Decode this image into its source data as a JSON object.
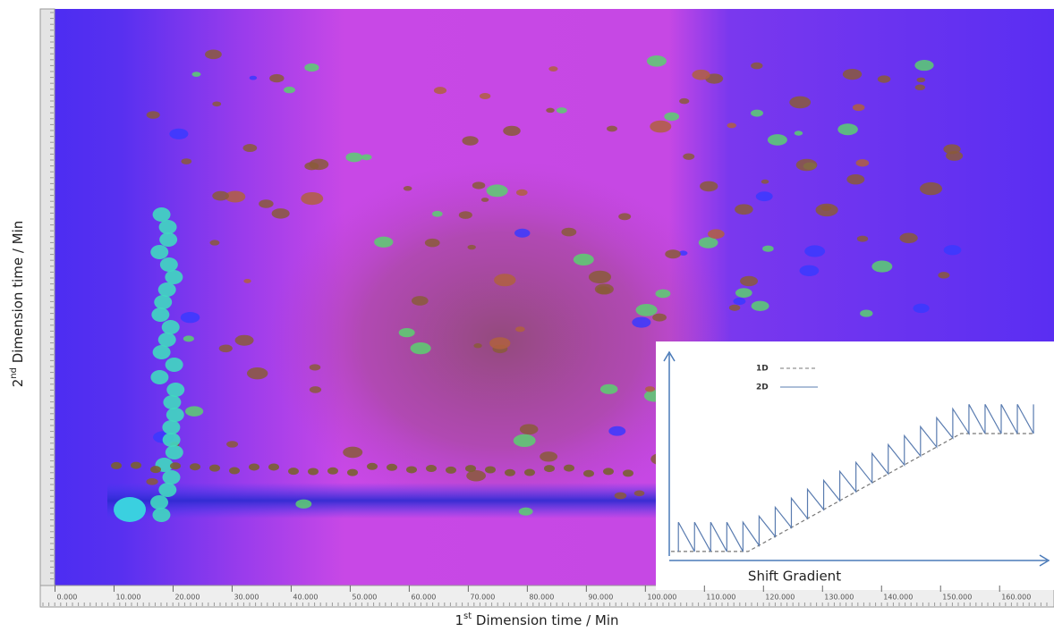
{
  "chart_data": [
    {
      "type": "heatmap",
      "x_label": {
        "pre": "1",
        "sup": "st",
        "post": " Dimension time / Min"
      },
      "y_label": {
        "pre": "2",
        "sup": "nd",
        "post": " Dimension time / Min"
      },
      "xlim": [
        -2.5,
        168
      ],
      "xticks": [
        {
          "value": 0,
          "label": "0.000"
        },
        {
          "value": 10,
          "label": "10.000"
        },
        {
          "value": 20,
          "label": "20.000"
        },
        {
          "value": 30,
          "label": "30.000"
        },
        {
          "value": 40,
          "label": "40.000"
        },
        {
          "value": 50,
          "label": "50.000"
        },
        {
          "value": 60,
          "label": "60.000"
        },
        {
          "value": 70,
          "label": "70.000"
        },
        {
          "value": 80,
          "label": "80.000"
        },
        {
          "value": 90,
          "label": "90.000"
        },
        {
          "value": 100,
          "label": "100.000"
        },
        {
          "value": 110,
          "label": "110.000"
        },
        {
          "value": 120,
          "label": "120.000"
        },
        {
          "value": 130,
          "label": "130.000"
        },
        {
          "value": 140,
          "label": "140.000"
        },
        {
          "value": 150,
          "label": "150.000"
        },
        {
          "value": 160,
          "label": "160.000"
        }
      ]
    },
    {
      "type": "line",
      "x_label": "Shift Gradient",
      "xlim": [
        0,
        100
      ],
      "ylim": [
        0,
        100
      ],
      "series": [
        {
          "name": "1D",
          "color": "#777777",
          "dashed": true,
          "x": [
            0,
            21,
            79,
            99
          ],
          "values": [
            0.5,
            0.5,
            61,
            61
          ]
        },
        {
          "name": "2D",
          "color": "#5a7cb0",
          "dashed": false,
          "x": [
            2,
            2,
            6.4,
            6.4,
            10.8,
            10.8,
            15.2,
            15.2,
            19.6,
            19.6,
            24,
            24,
            28.4,
            28.4,
            32.8,
            32.8,
            37.2,
            37.2,
            41.6,
            41.6,
            46,
            46,
            50.4,
            50.4,
            54.8,
            54.8,
            59.2,
            59.2,
            63.6,
            63.6,
            68,
            68,
            72.4,
            72.4,
            76.8,
            76.8,
            81.2,
            81.2,
            85.6,
            85.6,
            90,
            90,
            94.4,
            94.4,
            98.8,
            98.8
          ],
          "values": [
            0.5,
            15.5,
            0.5,
            15.5,
            0.5,
            15.5,
            0.5,
            15.5,
            0.5,
            15.5,
            3.6,
            18.6,
            8.2,
            23.2,
            12.8,
            27.8,
            17.4,
            32.4,
            22,
            37,
            26.6,
            41.6,
            31.2,
            46.2,
            35.8,
            50.8,
            40.3,
            55.3,
            44.9,
            59.9,
            49.5,
            64.5,
            54.1,
            69.1,
            58.7,
            73.7,
            61,
            76,
            61,
            76,
            61,
            76,
            61,
            76,
            61,
            76
          ]
        }
      ]
    }
  ]
}
